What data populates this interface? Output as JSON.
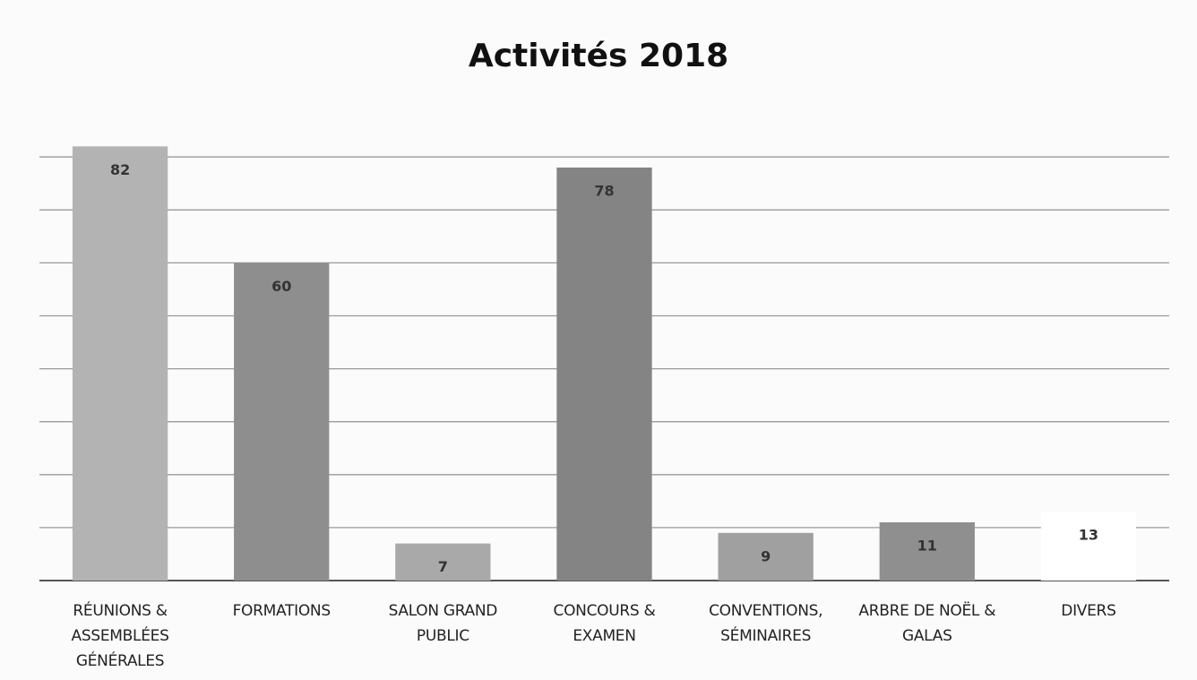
{
  "chart_data": {
    "type": "bar",
    "title": "Activités 2018",
    "categories": [
      "RÉUNIONS & ASSEMBLÉES GÉNÉRALES",
      "FORMATIONS",
      "SALON GRAND PUBLIC",
      "CONCOURS & EXAMEN",
      "CONVENTIONS, SÉMINAIRES",
      "ARBRE DE NOËL & GALAS",
      "DIVERS"
    ],
    "values": [
      82,
      60,
      7,
      78,
      9,
      11,
      13
    ],
    "colors": [
      "#b3b3b3",
      "#8e8e8e",
      "#a9a9a9",
      "#848484",
      "#a0a0a0",
      "#8f8f8f",
      "#ffffff"
    ],
    "ylim": [
      0,
      85
    ],
    "yticks": [
      0,
      10,
      20,
      30,
      40,
      50,
      60,
      70,
      80
    ],
    "grid": true
  }
}
